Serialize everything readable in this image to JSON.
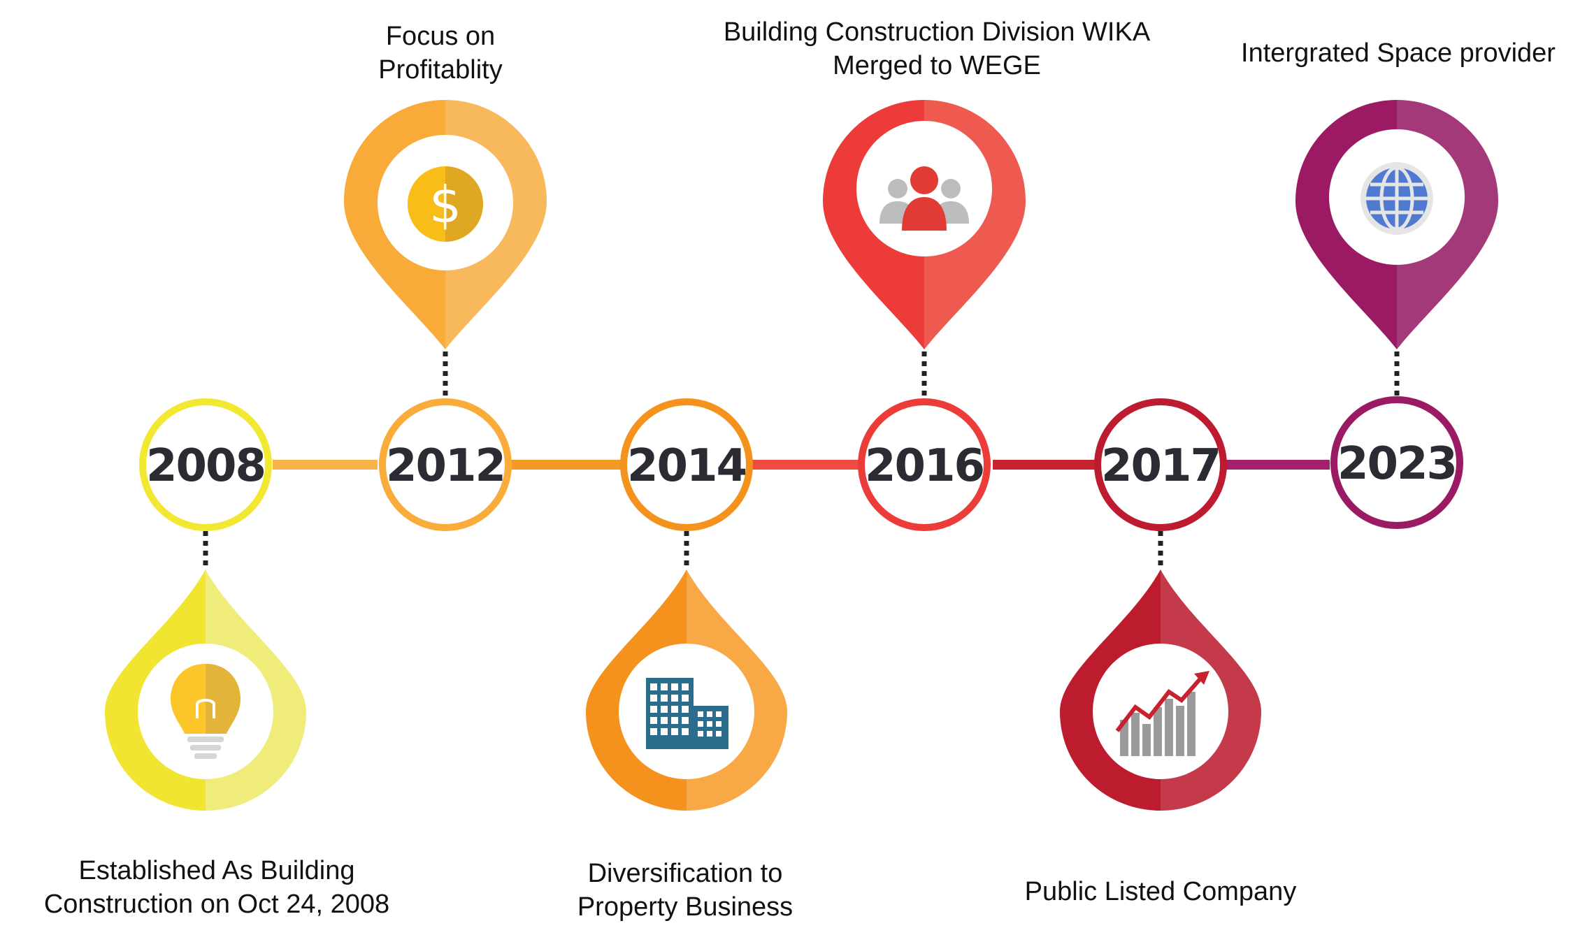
{
  "milestones": [
    {
      "year": "2008",
      "caption": "Established  As Building\nConstruction on Oct 24, 2008",
      "icon": "lightbulb-icon",
      "color": "#f2e832",
      "color_light": "#efeb77",
      "position": "below"
    },
    {
      "year": "2012",
      "caption": "Focus on\nProfitablity",
      "icon": "dollar-coin-icon",
      "color": "#f9ac3a",
      "color_light": "#f9b95e",
      "position": "above"
    },
    {
      "year": "2014",
      "caption": "Diversification to\nProperty Business",
      "icon": "buildings-icon",
      "color": "#f5921e",
      "color_light": "#f8a94a",
      "position": "below"
    },
    {
      "year": "2016",
      "caption": "Building Construction Division WIKA\nMerged to WEGE",
      "icon": "people-group-icon",
      "color": "#ec3c3a",
      "color_light": "#ee5b52",
      "position": "above"
    },
    {
      "year": "2017",
      "caption": "Public Listed Company",
      "icon": "growth-chart-icon",
      "color": "#bd1c30",
      "color_light": "#c53a4b",
      "position": "below"
    },
    {
      "year": "2023",
      "caption": "Intergrated Space provider",
      "icon": "globe-icon",
      "color": "#9a1a64",
      "color_light": "#a43a76",
      "position": "above"
    }
  ]
}
